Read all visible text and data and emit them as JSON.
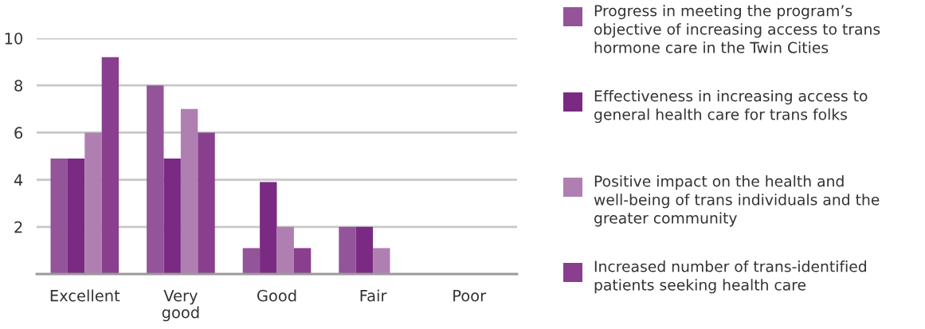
{
  "chart_data": {
    "type": "bar",
    "categories": [
      "Excellent",
      "Very\ngood",
      "Good",
      "Fair",
      "Poor"
    ],
    "series": [
      {
        "name": "Progress in meeting the program’s objective of increasing access to trans hormone care in the Twin Cities",
        "color": "#93549a",
        "values": [
          4.9,
          8,
          1.1,
          2,
          0
        ]
      },
      {
        "name": "Effectiveness in increasing access to general health care for trans folks",
        "color": "#7b2a83",
        "values": [
          4.9,
          4.9,
          3.9,
          2,
          0
        ]
      },
      {
        "name": "Positive impact on the health and well-being of trans individuals and the greater community",
        "color": "#b07fb2",
        "values": [
          6,
          7,
          2,
          1.1,
          0
        ]
      },
      {
        "name": "Increased number of trans-identified patients seeking health care",
        "color": "#893f8d",
        "values": [
          9.2,
          6,
          1.1,
          0,
          0
        ]
      }
    ],
    "ylim": [
      0,
      10
    ],
    "yticks": [
      2,
      4,
      6,
      8,
      10
    ],
    "grid": "y",
    "legend": "right"
  }
}
